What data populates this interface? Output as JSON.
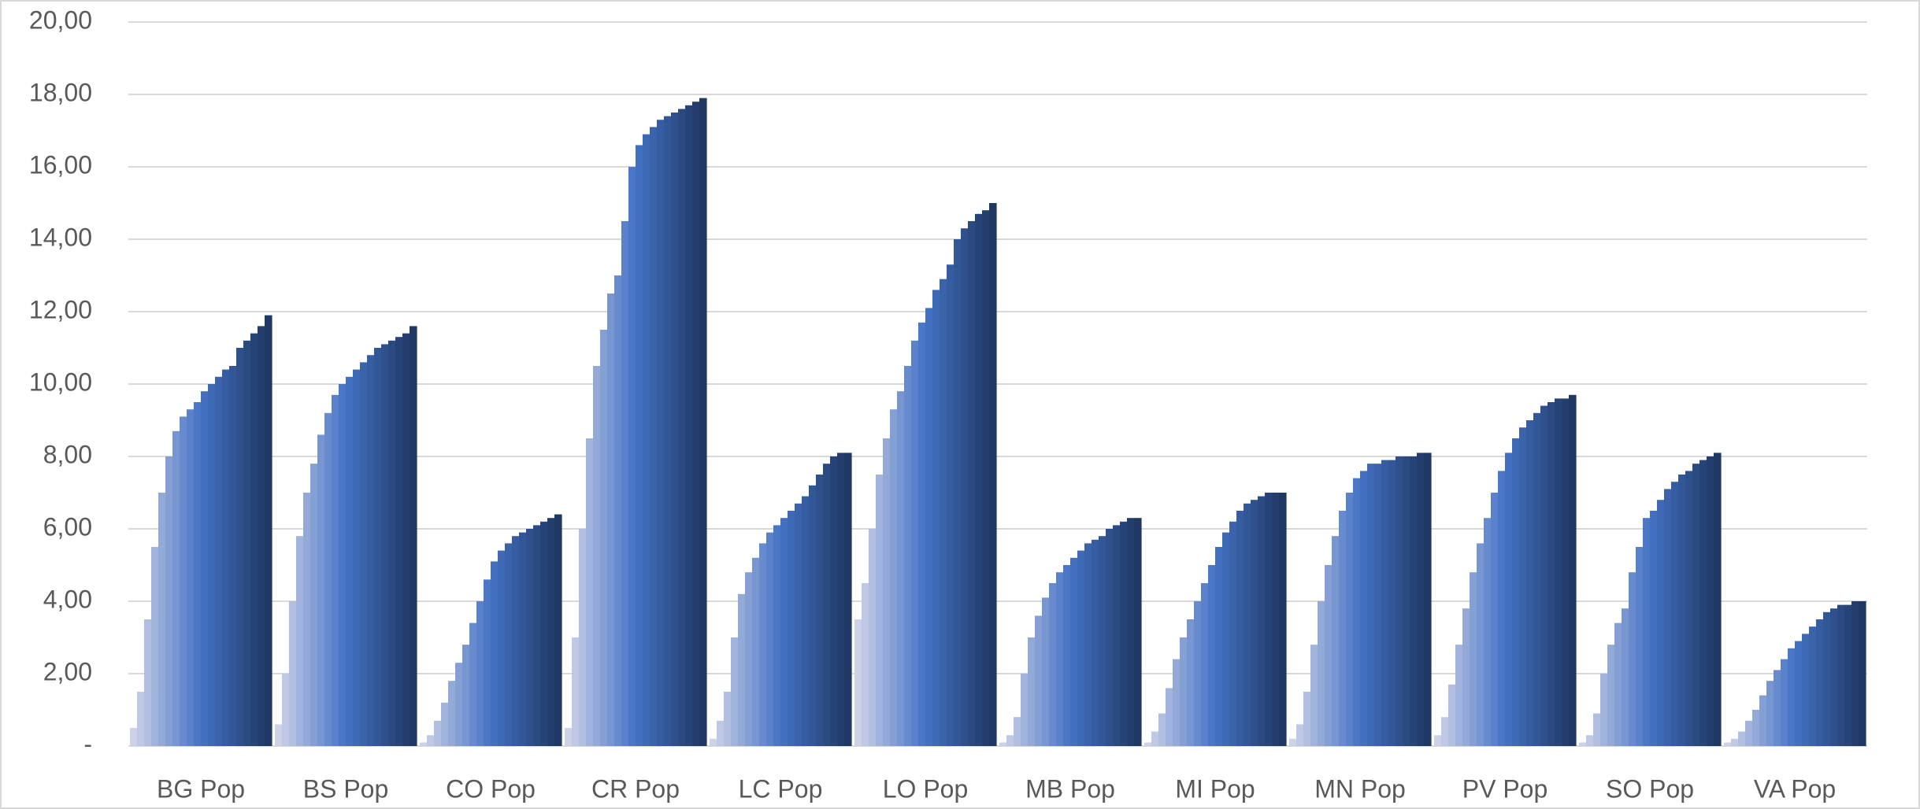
{
  "chart_data": {
    "type": "grouped-sorted-bar",
    "categories": [
      "BG Pop",
      "BS Pop",
      "CO Pop",
      "CR Pop",
      "LC Pop",
      "LO Pop",
      "MB Pop",
      "MI Pop",
      "MN Pop",
      "PV Pop",
      "SO Pop",
      "VA Pop"
    ],
    "groups": [
      [
        0.5,
        1.5,
        3.5,
        5.5,
        7.0,
        8.0,
        8.7,
        9.1,
        9.3,
        9.5,
        9.8,
        10.0,
        10.2,
        10.4,
        10.5,
        11.0,
        11.2,
        11.4,
        11.6,
        11.9
      ],
      [
        0.6,
        2.0,
        4.0,
        5.8,
        7.0,
        7.8,
        8.6,
        9.2,
        9.7,
        10.0,
        10.2,
        10.4,
        10.6,
        10.8,
        11.0,
        11.1,
        11.2,
        11.3,
        11.4,
        11.6
      ],
      [
        0.1,
        0.3,
        0.7,
        1.2,
        1.8,
        2.3,
        2.8,
        3.4,
        4.0,
        4.6,
        5.1,
        5.4,
        5.6,
        5.8,
        5.9,
        6.0,
        6.1,
        6.2,
        6.3,
        6.4
      ],
      [
        0.5,
        3.0,
        6.0,
        8.5,
        10.5,
        11.5,
        12.5,
        13.0,
        14.5,
        16.0,
        16.6,
        16.9,
        17.1,
        17.3,
        17.4,
        17.5,
        17.6,
        17.7,
        17.8,
        17.9
      ],
      [
        0.2,
        0.7,
        1.5,
        3.0,
        4.2,
        4.8,
        5.2,
        5.6,
        5.9,
        6.1,
        6.3,
        6.5,
        6.7,
        6.9,
        7.2,
        7.5,
        7.8,
        8.0,
        8.1,
        8.1
      ],
      [
        3.5,
        4.5,
        6.0,
        7.5,
        8.5,
        9.3,
        9.8,
        10.5,
        11.2,
        11.7,
        12.1,
        12.6,
        12.9,
        13.3,
        14.0,
        14.3,
        14.5,
        14.7,
        14.8,
        15.0
      ],
      [
        0.1,
        0.3,
        0.8,
        2.0,
        3.0,
        3.6,
        4.1,
        4.5,
        4.8,
        5.0,
        5.2,
        5.4,
        5.6,
        5.7,
        5.8,
        6.0,
        6.1,
        6.2,
        6.3,
        6.3
      ],
      [
        0.1,
        0.4,
        0.9,
        1.6,
        2.4,
        3.0,
        3.5,
        4.0,
        4.5,
        5.0,
        5.5,
        5.9,
        6.2,
        6.5,
        6.7,
        6.8,
        6.9,
        7.0,
        7.0,
        7.0
      ],
      [
        0.2,
        0.6,
        1.5,
        2.8,
        4.0,
        5.0,
        5.8,
        6.5,
        7.0,
        7.4,
        7.6,
        7.8,
        7.8,
        7.9,
        7.9,
        8.0,
        8.0,
        8.0,
        8.1,
        8.1
      ],
      [
        0.3,
        0.8,
        1.7,
        2.8,
        3.8,
        4.8,
        5.6,
        6.3,
        7.0,
        7.6,
        8.1,
        8.5,
        8.8,
        9.0,
        9.2,
        9.4,
        9.5,
        9.6,
        9.6,
        9.7
      ],
      [
        0.1,
        0.3,
        0.9,
        2.0,
        2.8,
        3.4,
        3.8,
        4.8,
        5.5,
        6.3,
        6.5,
        6.8,
        7.1,
        7.3,
        7.5,
        7.6,
        7.8,
        7.9,
        8.0,
        8.1
      ],
      [
        0.1,
        0.2,
        0.4,
        0.7,
        1.0,
        1.4,
        1.8,
        2.1,
        2.4,
        2.7,
        2.9,
        3.1,
        3.3,
        3.5,
        3.7,
        3.8,
        3.9,
        3.9,
        4.0,
        4.0
      ]
    ],
    "colors": [
      "#cdd2e8",
      "#4472c4",
      "#1f3864"
    ],
    "ylim": [
      0,
      20
    ],
    "yticks": [
      {
        "value": 0,
        "label": "-"
      },
      {
        "value": 2,
        "label": "2,00"
      },
      {
        "value": 4,
        "label": "4,00"
      },
      {
        "value": 6,
        "label": "6,00"
      },
      {
        "value": 8,
        "label": "8,00"
      },
      {
        "value": 10,
        "label": "10,00"
      },
      {
        "value": 12,
        "label": "12,00"
      },
      {
        "value": 14,
        "label": "14,00"
      },
      {
        "value": 16,
        "label": "16,00"
      },
      {
        "value": 18,
        "label": "18,00"
      },
      {
        "value": 20,
        "label": "20,00"
      }
    ],
    "grid": true
  }
}
